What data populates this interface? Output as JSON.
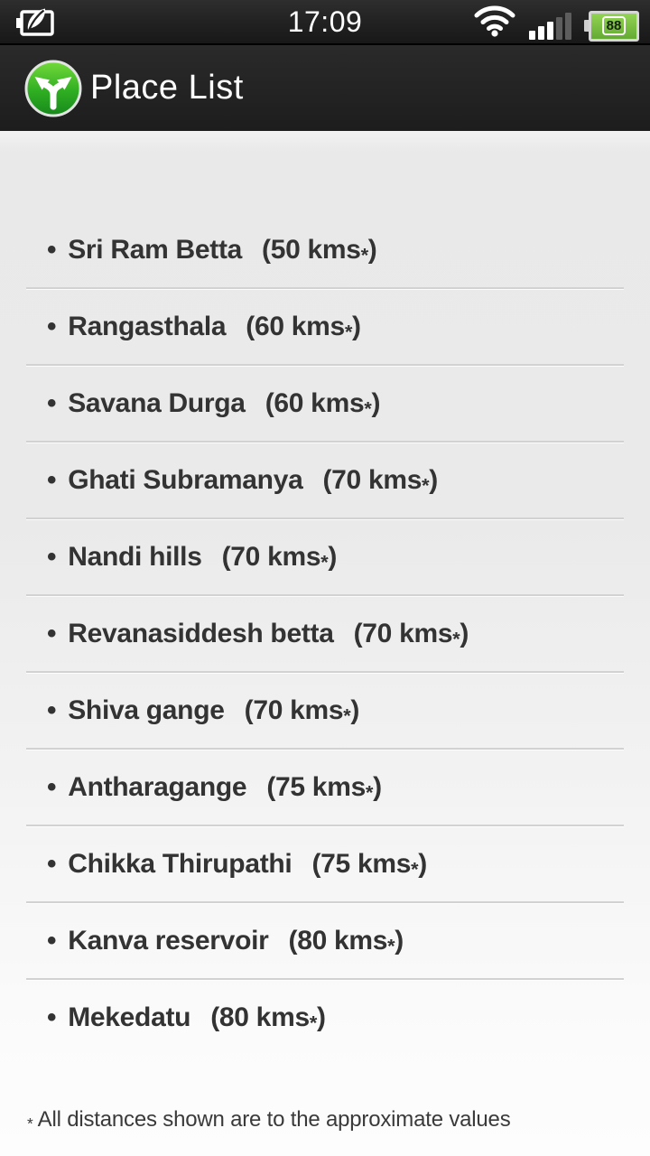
{
  "status_bar": {
    "time": "17:09",
    "battery_percent": "88",
    "icons": {
      "power_saver": "battery-with-leaf power saver indicator",
      "wifi": "wifi signal full",
      "signal": "cellular signal 3 of 5 bars",
      "battery": "horizontal battery 88%"
    }
  },
  "header": {
    "title": "Place List",
    "app_icon": "green circle with forked white arrows"
  },
  "list": {
    "bullet": "•",
    "items": [
      {
        "name": "Sri Ram Betta",
        "distance": "(50 kms*)"
      },
      {
        "name": "Rangasthala",
        "distance": "(60 kms*)"
      },
      {
        "name": "Savana Durga",
        "distance": "(60 kms*)"
      },
      {
        "name": "Ghati Subramanya",
        "distance": "(70 kms*)"
      },
      {
        "name": "Nandi hills",
        "distance": "(70 kms*)"
      },
      {
        "name": "Revanasiddesh betta",
        "distance": "(70 kms*)"
      },
      {
        "name": "Shiva gange",
        "distance": "(70 kms*)"
      },
      {
        "name": "Antharagange",
        "distance": "(75 kms*)"
      },
      {
        "name": "Chikka Thirupathi",
        "distance": "(75 kms*)"
      },
      {
        "name": "Kanva reservoir",
        "distance": "(80 kms*)"
      },
      {
        "name": "Mekedatu",
        "distance": "(80 kms*)"
      }
    ]
  },
  "footer": {
    "note": "* All distances shown are to the approximate values"
  },
  "colors": {
    "status_bg": "#1d1d1d",
    "header_bg": "#232323",
    "content_top": "#e9e9e9",
    "content_bottom": "#fdfdfd",
    "list_text": "#333333",
    "separator": "#d2d2d2",
    "battery_green": "#76c043",
    "icon_green_light": "#6fd637",
    "icon_green_dark": "#1a8f1a"
  }
}
